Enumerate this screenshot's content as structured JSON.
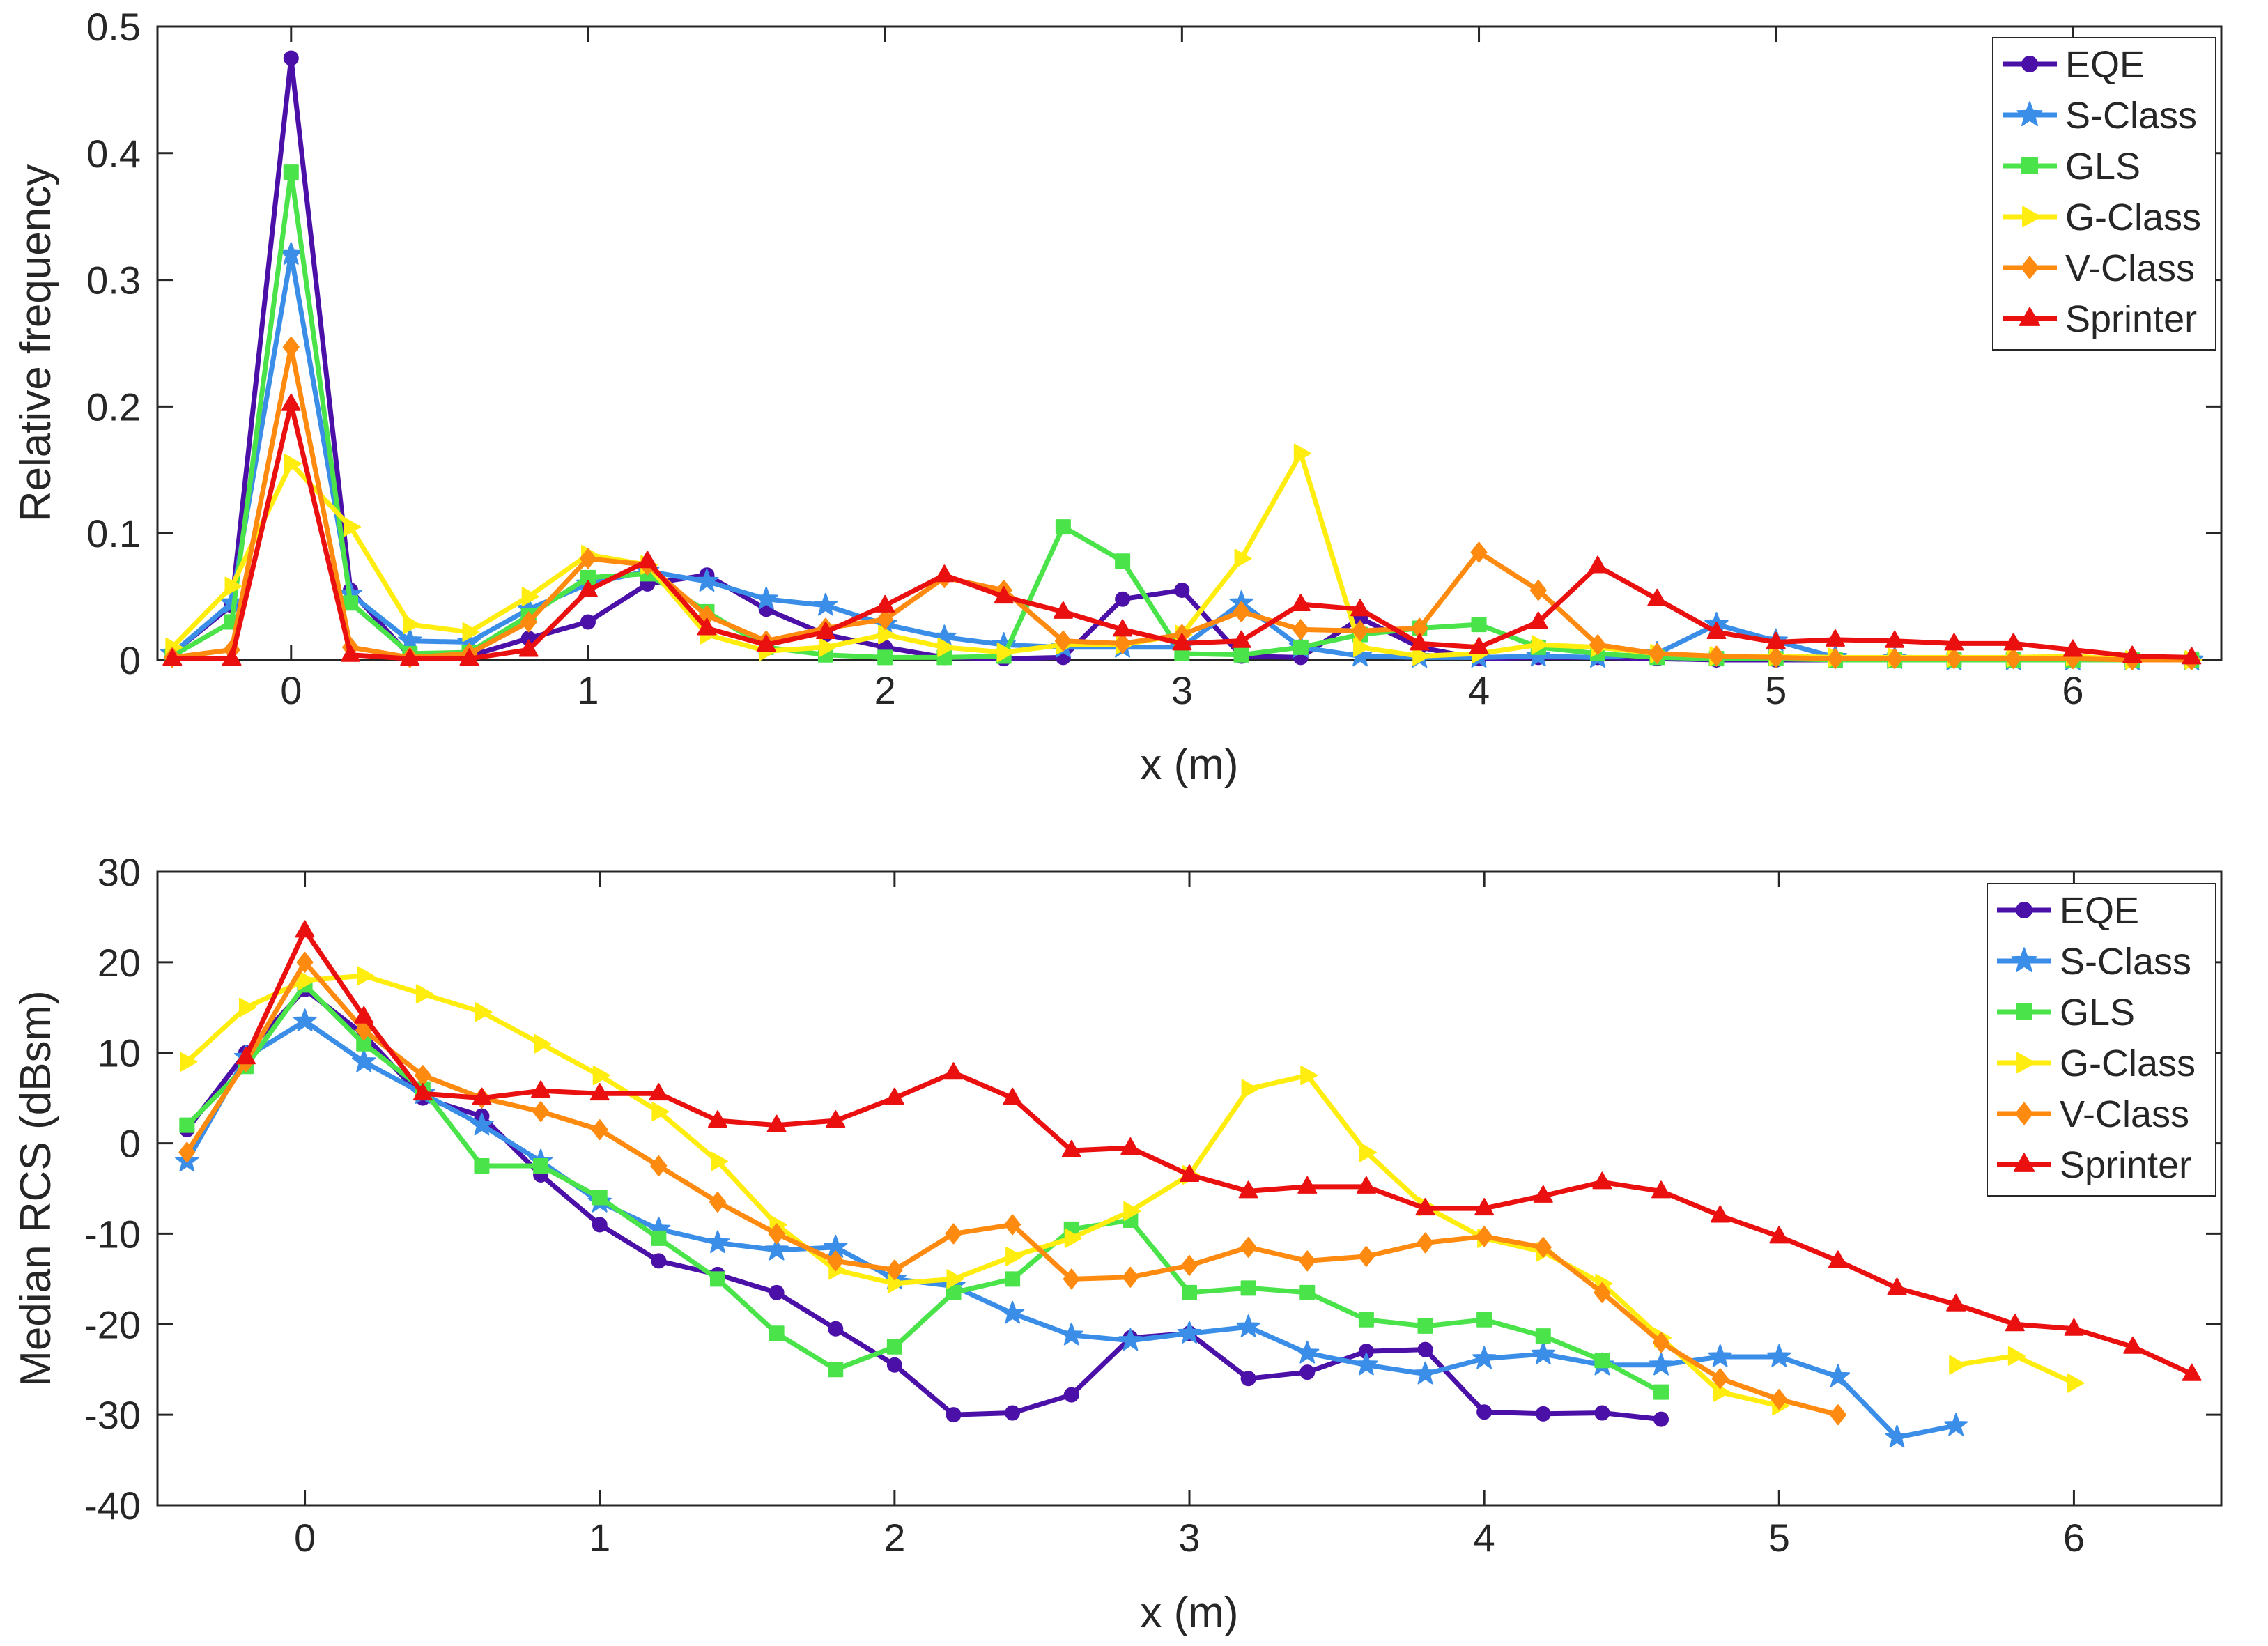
{
  "chart_data": [
    {
      "type": "line",
      "title": "",
      "xlabel": "x (m)",
      "ylabel": "Relative frequency",
      "xlim": [
        -0.45,
        6.5
      ],
      "ylim": [
        0,
        0.5
      ],
      "xticks": [
        0,
        1,
        2,
        3,
        4,
        5,
        6
      ],
      "xtick_labels": [
        "0",
        "1",
        "2",
        "3",
        "4",
        "5",
        "6"
      ],
      "yticks": [
        0,
        0.1,
        0.2,
        0.3,
        0.4,
        0.5
      ],
      "ytick_labels": [
        "0",
        "0.1",
        "0.2",
        "0.3",
        "0.4",
        "0.5"
      ],
      "legend_position": "top-right",
      "x": [
        -0.4,
        -0.2,
        0,
        0.2,
        0.4,
        0.6,
        0.8,
        1.0,
        1.2,
        1.4,
        1.6,
        1.8,
        2.0,
        2.2,
        2.4,
        2.6,
        2.8,
        3.0,
        3.2,
        3.4,
        3.6,
        3.8,
        4.0,
        4.2,
        4.4,
        4.6,
        4.8,
        5.0,
        5.2,
        5.4,
        5.6,
        5.8,
        6.0,
        6.2,
        6.4
      ],
      "series": [
        {
          "name": "EQE",
          "color": "#4b10a8",
          "marker": "circle",
          "values": [
            0.005,
            0.043,
            0.475,
            0.055,
            0.003,
            0.003,
            0.017,
            0.03,
            0.06,
            0.067,
            0.04,
            0.02,
            0.01,
            0.002,
            0.001,
            0.002,
            0.048,
            0.055,
            0.003,
            0.002,
            0.033,
            0.01,
            0.001,
            0.002,
            0.002,
            0.001,
            0.0,
            0.0,
            0.0,
            0.0,
            0.0,
            0.0,
            0.0,
            0.0,
            0.0
          ]
        },
        {
          "name": "S-Class",
          "color": "#3b8ee8",
          "marker": "star",
          "values": [
            0.005,
            0.045,
            0.32,
            0.052,
            0.015,
            0.014,
            0.04,
            0.06,
            0.07,
            0.062,
            0.048,
            0.043,
            0.028,
            0.018,
            0.012,
            0.01,
            0.01,
            0.01,
            0.045,
            0.01,
            0.003,
            0.002,
            0.002,
            0.003,
            0.002,
            0.005,
            0.028,
            0.015,
            0.002,
            0.001,
            0.0,
            0.0,
            0.0,
            0.0,
            0.0
          ]
        },
        {
          "name": "GLS",
          "color": "#4ae34a",
          "marker": "square",
          "values": [
            0.003,
            0.03,
            0.385,
            0.045,
            0.005,
            0.006,
            0.035,
            0.065,
            0.068,
            0.038,
            0.01,
            0.004,
            0.002,
            0.002,
            0.003,
            0.105,
            0.078,
            0.005,
            0.004,
            0.01,
            0.02,
            0.025,
            0.028,
            0.01,
            0.005,
            0.002,
            0.001,
            0.001,
            0.0,
            0.0,
            0.0,
            0.0,
            0.0,
            0.0,
            0.0
          ]
        },
        {
          "name": "G-Class",
          "color": "#ffed10",
          "marker": "triangle-right",
          "values": [
            0.01,
            0.058,
            0.155,
            0.105,
            0.028,
            0.022,
            0.05,
            0.083,
            0.075,
            0.02,
            0.007,
            0.01,
            0.02,
            0.01,
            0.006,
            0.012,
            0.012,
            0.02,
            0.08,
            0.163,
            0.01,
            0.003,
            0.005,
            0.012,
            0.01,
            0.005,
            0.003,
            0.003,
            0.002,
            0.002,
            0.002,
            0.002,
            0.003,
            0.0,
            0.0
          ]
        },
        {
          "name": "V-Class",
          "color": "#ff8a10",
          "marker": "diamond",
          "values": [
            0.002,
            0.008,
            0.247,
            0.01,
            0.002,
            0.005,
            0.03,
            0.08,
            0.075,
            0.035,
            0.015,
            0.025,
            0.032,
            0.065,
            0.055,
            0.015,
            0.013,
            0.02,
            0.038,
            0.024,
            0.023,
            0.025,
            0.085,
            0.055,
            0.012,
            0.005,
            0.003,
            0.002,
            0.001,
            0.001,
            0.001,
            0.001,
            0.001,
            0.0,
            0.0
          ]
        },
        {
          "name": "Sprinter",
          "color": "#eb1010",
          "marker": "triangle-up",
          "values": [
            0.001,
            0.001,
            0.202,
            0.004,
            0.001,
            0.001,
            0.008,
            0.055,
            0.078,
            0.025,
            0.012,
            0.022,
            0.043,
            0.067,
            0.05,
            0.038,
            0.024,
            0.013,
            0.015,
            0.044,
            0.04,
            0.013,
            0.01,
            0.03,
            0.074,
            0.048,
            0.022,
            0.014,
            0.016,
            0.015,
            0.013,
            0.013,
            0.008,
            0.003,
            0.002
          ]
        }
      ]
    },
    {
      "type": "line",
      "title": "",
      "xlabel": "x (m)",
      "ylabel": "Median RCS (dBsm)",
      "xlim": [
        -0.5,
        6.5
      ],
      "ylim": [
        -40,
        30
      ],
      "xticks": [
        0,
        1,
        2,
        3,
        4,
        5,
        6
      ],
      "xtick_labels": [
        "0",
        "1",
        "2",
        "3",
        "4",
        "5",
        "6"
      ],
      "yticks": [
        -40,
        -30,
        -20,
        -10,
        0,
        10,
        20,
        30
      ],
      "ytick_labels": [
        "-40",
        "-30",
        "-20",
        "-10",
        "0",
        "10",
        "20",
        "30"
      ],
      "legend_position": "top-right",
      "x": [
        -0.4,
        -0.2,
        0,
        0.2,
        0.4,
        0.6,
        0.8,
        1.0,
        1.2,
        1.4,
        1.6,
        1.8,
        2.0,
        2.2,
        2.4,
        2.6,
        2.8,
        3.0,
        3.2,
        3.4,
        3.6,
        3.8,
        4.0,
        4.2,
        4.4,
        4.6,
        4.8,
        5.0,
        5.2,
        5.4,
        5.6,
        5.8,
        6.0,
        6.2,
        6.4
      ],
      "series": [
        {
          "name": "EQE",
          "color": "#4b10a8",
          "marker": "circle",
          "values": [
            1.5,
            10,
            17,
            12,
            5,
            3,
            -3.5,
            -9,
            -13,
            -14.5,
            -16.5,
            -20.5,
            -24.5,
            -30,
            -29.8,
            -27.8,
            -21.5,
            -21,
            -26,
            -25.3,
            -23,
            -22.8,
            -29.7,
            -29.9,
            -29.8,
            -30.5,
            null,
            null,
            null,
            null,
            null,
            null,
            null,
            null,
            null
          ]
        },
        {
          "name": "S-Class",
          "color": "#3b8ee8",
          "marker": "star",
          "values": [
            -2,
            9.5,
            13.5,
            9,
            5.5,
            2,
            -2,
            -6.5,
            -9.5,
            -11,
            -11.8,
            -11.5,
            -15,
            -15.8,
            -18.8,
            -21.2,
            -21.8,
            -21,
            -20.3,
            -23.2,
            -24.5,
            -25.5,
            -23.8,
            -23.3,
            -24.5,
            -24.5,
            -23.6,
            -23.6,
            -25.8,
            -32.5,
            -31.2,
            null,
            null,
            null,
            null
          ]
        },
        {
          "name": "GLS",
          "color": "#4ae34a",
          "marker": "square",
          "values": [
            2,
            8.5,
            17.5,
            11,
            6,
            -2.5,
            -2.5,
            -6,
            -10.5,
            -15,
            -21,
            -25,
            -22.5,
            -16.5,
            -15,
            -9.5,
            -8.5,
            -16.5,
            -16,
            -16.5,
            -19.5,
            -20.2,
            -19.5,
            -21.3,
            -24,
            -27.5,
            null,
            null,
            null,
            null,
            null,
            null,
            null,
            null,
            null
          ]
        },
        {
          "name": "G-Class",
          "color": "#ffed10",
          "marker": "triangle-right",
          "values": [
            9,
            15,
            18,
            18.5,
            16.5,
            14.5,
            11,
            7.5,
            3.5,
            -2,
            -9,
            -14,
            -15.5,
            -15,
            -12.5,
            -10.5,
            -7.5,
            -3.5,
            6,
            7.5,
            -1,
            -7,
            -10.5,
            -12,
            -15.5,
            -21.5,
            -27.5,
            -29,
            null,
            null,
            -24.5,
            -23.5,
            -26.5,
            null,
            null
          ]
        },
        {
          "name": "V-Class",
          "color": "#ff8a10",
          "marker": "diamond",
          "values": [
            -1,
            9,
            20,
            12.5,
            7.5,
            5,
            3.5,
            1.5,
            -2.5,
            -6.5,
            -10,
            -13,
            -14,
            -10,
            -9,
            -15,
            -14.8,
            -13.5,
            -11.5,
            -13,
            -12.5,
            -11,
            -10.3,
            -11.5,
            -16.5,
            -22,
            -26,
            -28.3,
            -30,
            null,
            null,
            null,
            null,
            null,
            null
          ]
        },
        {
          "name": "Sprinter",
          "color": "#eb1010",
          "marker": "triangle-up",
          "values": [
            null,
            9.5,
            23.5,
            14,
            5.5,
            5,
            5.8,
            5.5,
            5.5,
            2.5,
            2,
            2.5,
            5,
            7.8,
            5,
            -0.8,
            -0.5,
            -3.5,
            -5.3,
            -4.8,
            -4.8,
            -7.2,
            -7.2,
            -5.8,
            -4.3,
            -5.3,
            -8,
            -10.3,
            -13,
            -16,
            -17.8,
            -20,
            -20.5,
            -22.5,
            -25.5
          ]
        }
      ]
    }
  ]
}
